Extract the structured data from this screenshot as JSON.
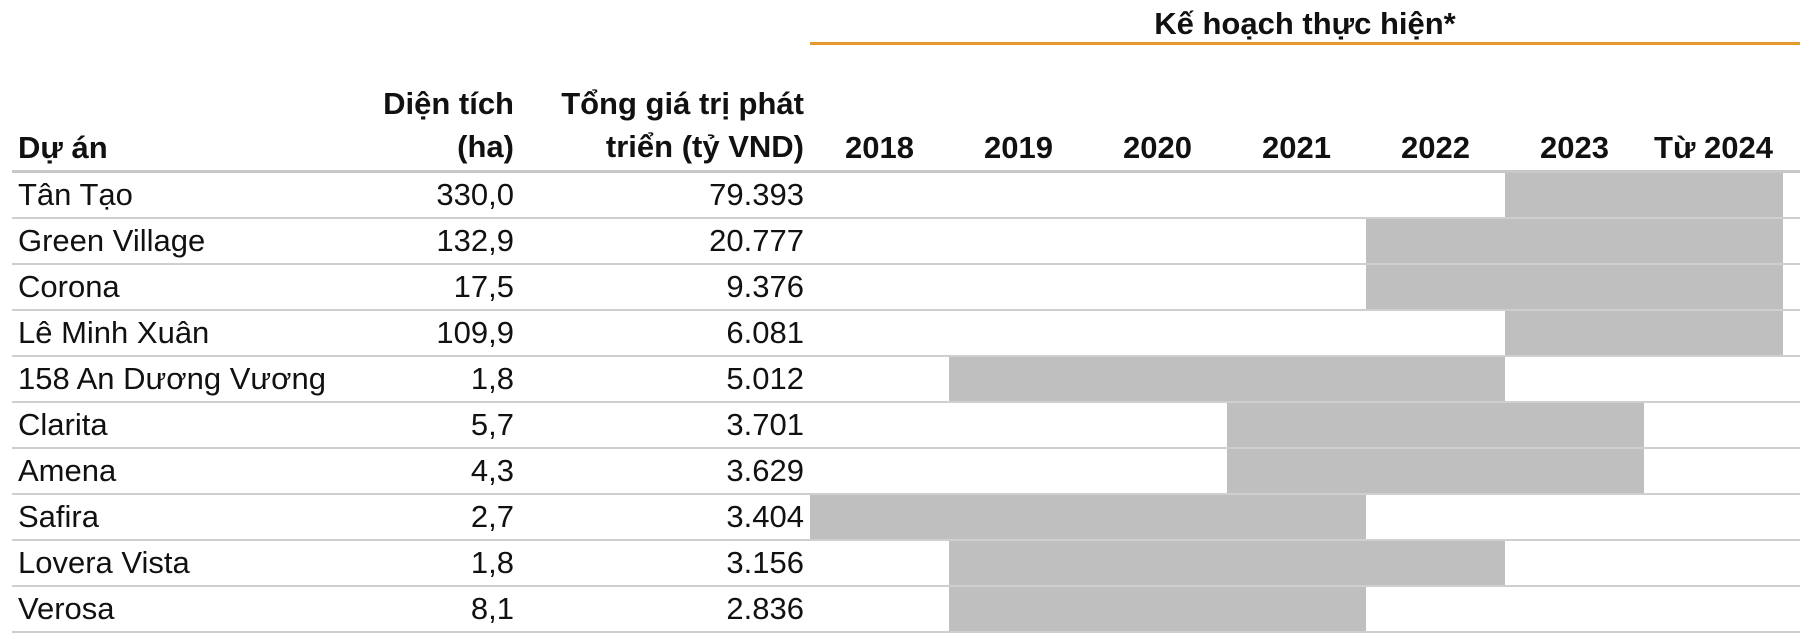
{
  "table": {
    "plan_title": "Kế hoạch thực hiện*",
    "header": {
      "project": "Dự án",
      "area": "Diện tích (ha)",
      "value": "Tổng giá trị phát triển (tỷ VND)"
    },
    "years": [
      "2018",
      "2019",
      "2020",
      "2021",
      "2022",
      "2023",
      "Từ 2024"
    ],
    "rows": [
      {
        "name": "Tân Tạo",
        "area": "330,0",
        "value": "79.393",
        "plan": [
          5,
          7
        ]
      },
      {
        "name": "Green Village",
        "area": "132,9",
        "value": "20.777",
        "plan": [
          4,
          7
        ]
      },
      {
        "name": "Corona",
        "area": "17,5",
        "value": "9.376",
        "plan": [
          4,
          7
        ]
      },
      {
        "name": "Lê Minh Xuân",
        "area": "109,9",
        "value": "6.081",
        "plan": [
          5,
          7
        ]
      },
      {
        "name": "158 An Dương Vương",
        "area": "1,8",
        "value": "5.012",
        "plan": [
          1,
          5
        ]
      },
      {
        "name": "Clarita",
        "area": "5,7",
        "value": "3.701",
        "plan": [
          3,
          6
        ]
      },
      {
        "name": "Amena",
        "area": "4,3",
        "value": "3.629",
        "plan": [
          3,
          6
        ]
      },
      {
        "name": "Safira",
        "area": "2,7",
        "value": "3.404",
        "plan": [
          0,
          4
        ]
      },
      {
        "name": "Lovera Vista",
        "area": "1,8",
        "value": "3.156",
        "plan": [
          1,
          5
        ]
      },
      {
        "name": "Verosa",
        "area": "8,1",
        "value": "2.836",
        "plan": [
          1,
          4
        ]
      }
    ]
  }
}
